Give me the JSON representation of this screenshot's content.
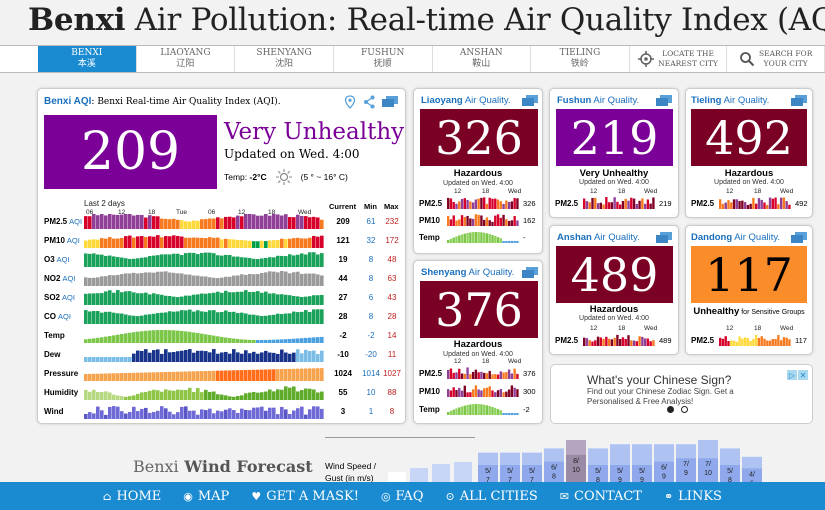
{
  "title": {
    "bold": "Benxi",
    "rest": " Air Pollution: Real-time Air Quality Index (AQI)"
  },
  "nav": {
    "cities": [
      {
        "en": "BENXI",
        "zh": "本溪",
        "active": true
      },
      {
        "en": "LIAOYANG",
        "zh": "辽阳",
        "active": false
      },
      {
        "en": "SHENYANG",
        "zh": "沈阳",
        "active": false
      },
      {
        "en": "FUSHUN",
        "zh": "抚顺",
        "active": false
      },
      {
        "en": "ANSHAN",
        "zh": "鞍山",
        "active": false
      },
      {
        "en": "TIELING",
        "zh": "铁岭",
        "active": false
      }
    ],
    "locate": {
      "line1": "LOCATE THE",
      "line2": "NEAREST CITY"
    },
    "search": {
      "line1": "SEARCH FOR",
      "line2": "YOUR CITY"
    }
  },
  "colors": {
    "very_unhealthy": "#7a0097",
    "hazardous": "#7a0024",
    "unhealthy_sensitive": "#fb8c2a",
    "nav_blue": "#1a8bd1"
  },
  "main": {
    "head_city": "Benxi AQI",
    "head_rest": ": Benxi Real-time Air Quality Index (AQI).",
    "aqi": "209",
    "status": "Very Unhealthy",
    "updated": "Updated on Wed. 4:00",
    "temp_label": "Temp:",
    "temp_value": "-2°C",
    "temp_range": "(5 ° ~ 16° C)",
    "last_days": "Last 2 days",
    "ticks": [
      "06",
      "12",
      "18",
      "Tue",
      "06",
      "12",
      "18",
      "Wed"
    ],
    "col_current": "Current",
    "col_min": "Min",
    "col_max": "Max",
    "rows": [
      {
        "name": "PM2.5",
        "sub": "AQI",
        "current": "209",
        "min": "61",
        "max": "232"
      },
      {
        "name": "PM10",
        "sub": "AQI",
        "current": "121",
        "min": "32",
        "max": "172"
      },
      {
        "name": "O3",
        "sub": "AQI",
        "current": "19",
        "min": "8",
        "max": "48"
      },
      {
        "name": "NO2",
        "sub": "AQI",
        "current": "44",
        "min": "8",
        "max": "63"
      },
      {
        "name": "SO2",
        "sub": "AQI",
        "current": "27",
        "min": "6",
        "max": "43"
      },
      {
        "name": "CO",
        "sub": "AQI",
        "current": "28",
        "min": "8",
        "max": "28"
      },
      {
        "name": "Temp",
        "sub": "",
        "current": "-2",
        "min": "-2",
        "max": "14"
      },
      {
        "name": "Dew",
        "sub": "",
        "current": "-10",
        "min": "-20",
        "max": "11"
      },
      {
        "name": "Pressure",
        "sub": "",
        "current": "1024",
        "min": "1014",
        "max": "1027"
      },
      {
        "name": "Humidity",
        "sub": "",
        "current": "55",
        "min": "10",
        "max": "88"
      },
      {
        "name": "Wind",
        "sub": "",
        "current": "3",
        "min": "1",
        "max": "8"
      }
    ]
  },
  "cities": [
    {
      "id": "liaoyang",
      "name": "Liaoyang",
      "suffix": " Air Quality.",
      "aqi": "326",
      "status": "Hazardous",
      "updated": "Updated on Wed. 4:00",
      "ticks": [
        "12",
        "18",
        "Wed"
      ],
      "rows": [
        {
          "name": "PM2.5",
          "value": "326"
        },
        {
          "name": "PM10",
          "value": "162"
        },
        {
          "name": "Temp",
          "value": "-"
        }
      ]
    },
    {
      "id": "fushun",
      "name": "Fushun",
      "suffix": " Air Quality.",
      "aqi": "219",
      "status": "Very Unhealthy",
      "updated": "Updated on Wed. 4:00",
      "ticks": [
        "12",
        "18",
        "Wed"
      ],
      "rows": [
        {
          "name": "PM2.5",
          "value": "219"
        }
      ]
    },
    {
      "id": "tieling",
      "name": "Tieling",
      "suffix": " Air Quality.",
      "aqi": "492",
      "status": "Hazardous",
      "updated": "Updated on Wed. 4:00",
      "ticks": [
        "12",
        "18",
        "Wed"
      ],
      "rows": [
        {
          "name": "PM2.5",
          "value": "492"
        }
      ]
    },
    {
      "id": "shenyang",
      "name": "Shenyang",
      "suffix": " Air Quality.",
      "aqi": "376",
      "status": "Hazardous",
      "updated": "Updated on Wed. 4:00",
      "ticks": [
        "12",
        "18",
        "Wed"
      ],
      "rows": [
        {
          "name": "PM2.5",
          "value": "376"
        },
        {
          "name": "PM10",
          "value": "300"
        },
        {
          "name": "Temp",
          "value": "-2"
        }
      ]
    },
    {
      "id": "anshan",
      "name": "Anshan",
      "suffix": " Air Quality.",
      "aqi": "489",
      "status": "Hazardous",
      "updated": "Updated on Wed. 4:00",
      "ticks": [
        "12",
        "18",
        "Wed"
      ],
      "rows": [
        {
          "name": "PM2.5",
          "value": "489"
        }
      ]
    },
    {
      "id": "dandong",
      "name": "Dandong",
      "suffix": " Air Quality.",
      "aqi": "117",
      "status": "Unhealthy",
      "status_extra": " for Sensitive Groups",
      "updated": "",
      "ticks": [
        "12",
        "18",
        "Wed"
      ],
      "rows": [
        {
          "name": "PM2.5",
          "value": "117"
        }
      ]
    }
  ],
  "ad": {
    "title": "What's your Chinese Sign?",
    "text": "Find out your Chinese Zodiac Sign. Get a Personalised & Free Analysis!"
  },
  "wind": {
    "title_city": "Benxi",
    "title_rest": " Wind Forecast",
    "label_line1": "Wind Speed /",
    "label_line2": "Gust (in m/s)",
    "bars": [
      {
        "top": "5/",
        "bottom": "7"
      },
      {
        "top": "5/",
        "bottom": "7"
      },
      {
        "top": "5/",
        "bottom": "7"
      },
      {
        "top": "6/",
        "bottom": "8"
      },
      {
        "top": "8/",
        "bottom": "10"
      },
      {
        "top": "5/",
        "bottom": "8"
      },
      {
        "top": "5/",
        "bottom": "9"
      },
      {
        "top": "5/",
        "bottom": "9"
      },
      {
        "top": "6/",
        "bottom": "9"
      },
      {
        "top": "7/",
        "bottom": "9"
      },
      {
        "top": "7/",
        "bottom": "10"
      },
      {
        "top": "5/",
        "bottom": "8"
      },
      {
        "top": "4/",
        "bottom": "6"
      }
    ]
  },
  "footer": {
    "items": [
      {
        "id": "home",
        "label": "HOME",
        "icon": "home-icon"
      },
      {
        "id": "map",
        "label": "MAP",
        "icon": "globe-icon"
      },
      {
        "id": "mask",
        "label": "GET A MASK!",
        "icon": "heart-icon"
      },
      {
        "id": "faq",
        "label": "FAQ",
        "icon": "question-icon"
      },
      {
        "id": "cities",
        "label": "ALL CITIES",
        "icon": "search-icon"
      },
      {
        "id": "contact",
        "label": "CONTACT",
        "icon": "envelope-icon"
      },
      {
        "id": "links",
        "label": "LINKS",
        "icon": "link-icon"
      }
    ]
  }
}
